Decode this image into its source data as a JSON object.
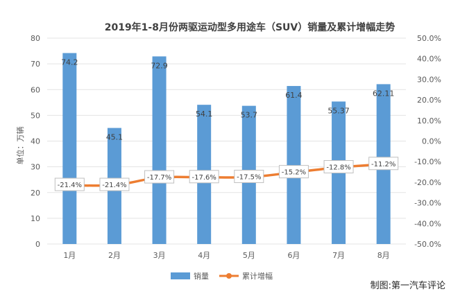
{
  "chart_data": {
    "type": "bar",
    "title": "2019年1-8月份两驱运动型多用途车（SUV）销量及累计增幅走势",
    "ylabel": "单位：万辆",
    "categories": [
      "1月",
      "2月",
      "3月",
      "4月",
      "5月",
      "6月",
      "7月",
      "8月"
    ],
    "ylim": [
      0,
      80
    ],
    "yticks": [
      "0",
      "10",
      "20",
      "30",
      "40",
      "50",
      "60",
      "70",
      "80"
    ],
    "y2lim": [
      -50,
      50
    ],
    "y2ticks": [
      "-50.0%",
      "-40.0%",
      "-30.0%",
      "-20.0%",
      "-10.0%",
      "0.0%",
      "10.0%",
      "20.0%",
      "30.0%",
      "40.0%",
      "50.0%"
    ],
    "series": [
      {
        "name": "销量",
        "type": "bar",
        "axis": "left",
        "color": "#5b9bd5",
        "values": [
          74.2,
          45.1,
          72.9,
          54.1,
          53.7,
          61.4,
          55.37,
          62.11
        ],
        "labels": [
          "74.2",
          "45.1",
          "72.9",
          "54.1",
          "53.7",
          "61.4",
          "55.37",
          "62.11"
        ]
      },
      {
        "name": "累计增幅",
        "type": "line",
        "axis": "right",
        "color": "#ed7d31",
        "values": [
          -21.4,
          -21.4,
          -17.7,
          -17.6,
          -17.5,
          -15.2,
          -12.8,
          -11.2
        ],
        "labels": [
          "-21.4%",
          "-21.4%",
          "-17.7%",
          "-17.6%",
          "-17.5%",
          "-15.2%",
          "-12.8%",
          "-11.2%"
        ]
      }
    ],
    "grid": true,
    "legend": "bottom"
  },
  "credit": "制图:第一汽车评论"
}
